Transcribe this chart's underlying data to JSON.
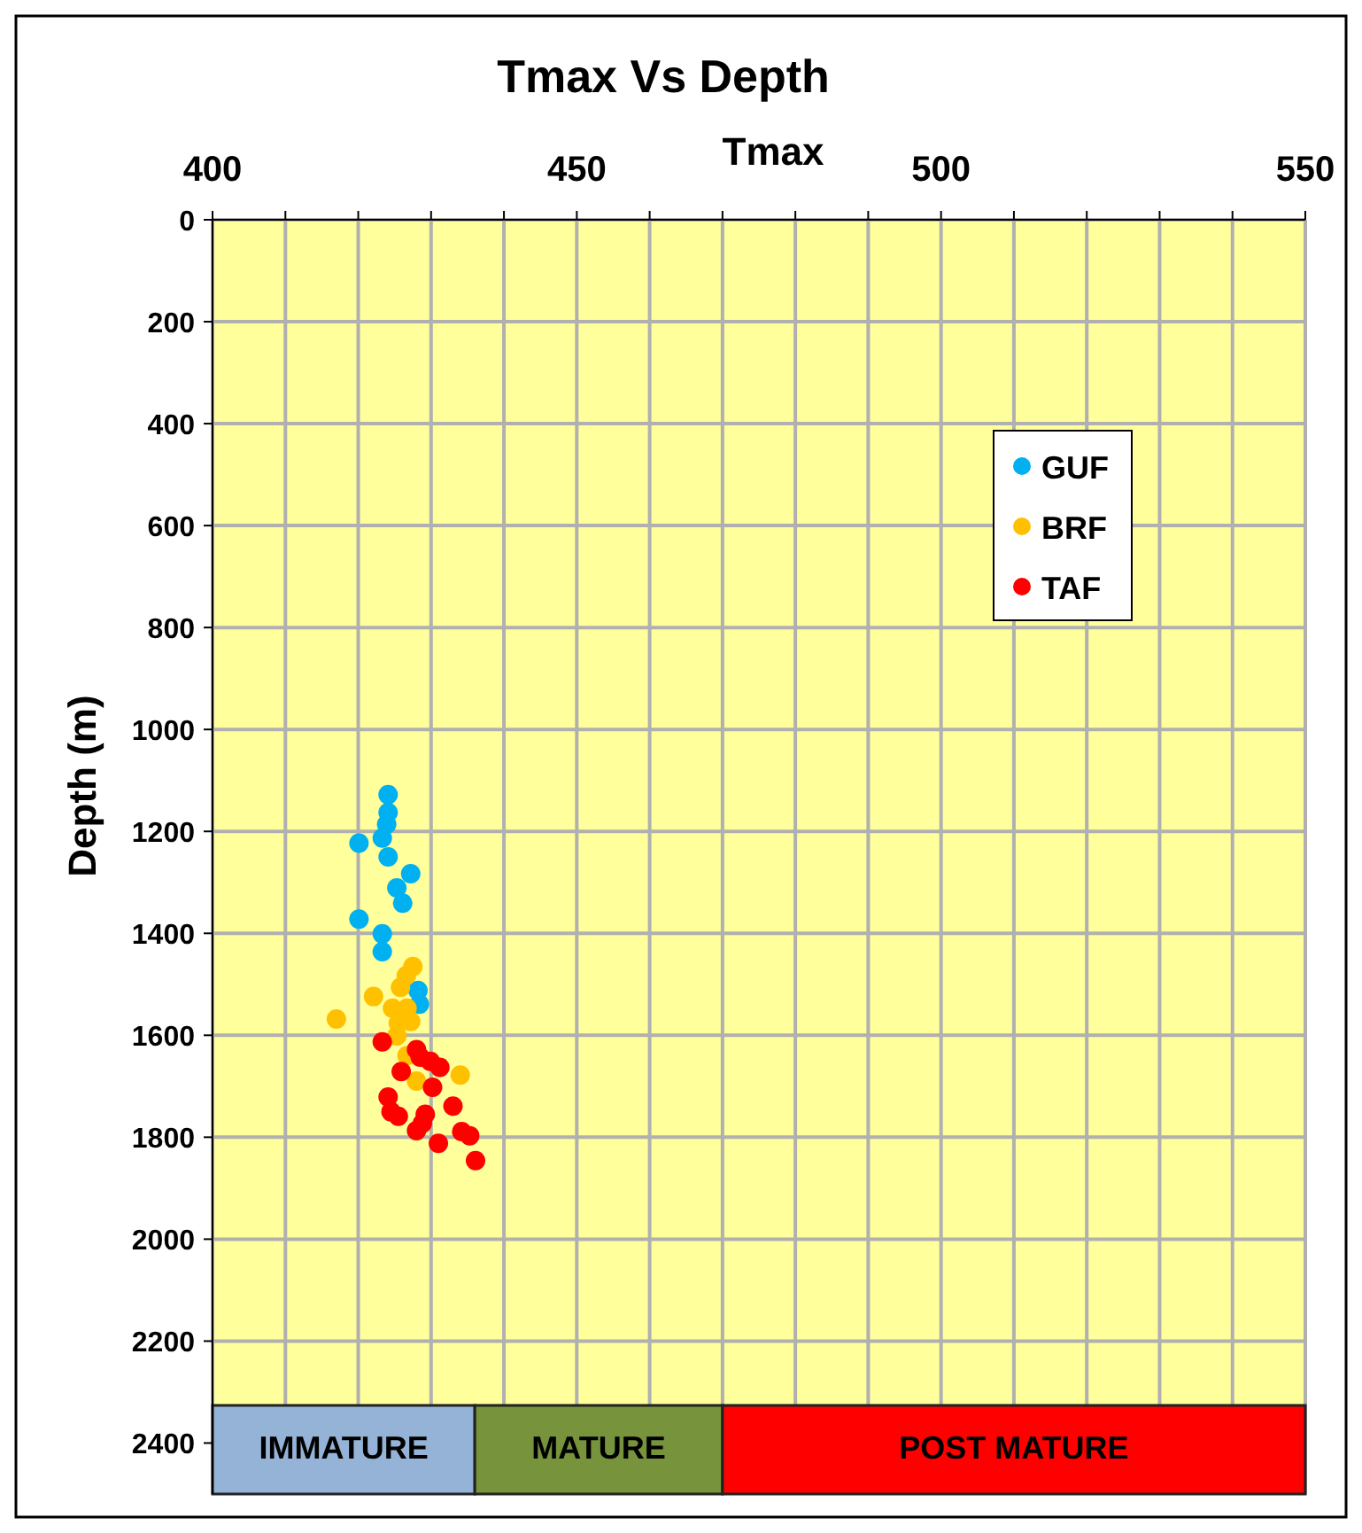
{
  "chart_data": {
    "type": "scatter",
    "title": "Tmax Vs Depth",
    "xlabel": "Tmax",
    "ylabel": "Depth (m)",
    "xlim": [
      400,
      550
    ],
    "ylim": [
      2500,
      0
    ],
    "xticks": [
      400,
      {
        "value": 410,
        "label": null
      },
      {
        "value": 420,
        "label": null
      },
      {
        "value": 430,
        "label": null
      },
      {
        "value": 440,
        "label": null
      },
      450,
      {
        "value": 460,
        "label": null
      },
      {
        "value": 470,
        "label": null
      },
      {
        "value": 480,
        "label": null
      },
      {
        "value": 490,
        "label": null
      },
      500,
      {
        "value": 510,
        "label": null
      },
      {
        "value": 520,
        "label": null
      },
      {
        "value": 530,
        "label": null
      },
      {
        "value": 540,
        "label": null
      },
      550
    ],
    "yticks": [
      0,
      200,
      400,
      600,
      800,
      1000,
      1200,
      1400,
      1600,
      1800,
      2000,
      2200,
      2400
    ],
    "grid": true,
    "legend": "right",
    "marker": "circle",
    "bands": [
      {
        "axis": "x",
        "from": 400,
        "to": 436,
        "label": "IMMATURE",
        "color": "#95b3d7"
      },
      {
        "axis": "x",
        "from": 436,
        "to": 470,
        "label": "MATURE",
        "color": "#77933c"
      },
      {
        "axis": "x",
        "from": 470,
        "to": 550,
        "label": "POST MATURE",
        "color": "#ff0000"
      }
    ],
    "series": [
      {
        "name": "GUF",
        "color": "#00b0f0",
        "x": [
          424.1,
          424.1,
          423.9,
          423.3,
          420.1,
          424.1,
          427.2,
          425.3,
          426.1,
          420.1,
          423.3,
          423.3,
          428.2,
          428.4
        ],
        "values": [
          1128,
          1163,
          1186,
          1213,
          1223,
          1250,
          1283,
          1311,
          1341,
          1372,
          1401,
          1436,
          1512,
          1539
        ]
      },
      {
        "name": "BRF",
        "color": "#ffc000",
        "x": [
          427.5,
          426.6,
          425.8,
          422.1,
          424.7,
          426.7,
          417.0,
          425.5,
          427.2,
          425.3,
          426.7,
          434.0,
          428.0
        ],
        "values": [
          1465,
          1483,
          1506,
          1524,
          1547,
          1547,
          1568,
          1576,
          1573,
          1601,
          1640,
          1678,
          1690
        ]
      },
      {
        "name": "TAF",
        "color": "#ff0000",
        "x": [
          423.3,
          428.0,
          428.5,
          429.9,
          431.2,
          425.9,
          430.2,
          433.0,
          424.1,
          424.5,
          425.5,
          429.2,
          428.8,
          428.0,
          434.2,
          435.3,
          431.0,
          436.1
        ],
        "values": [
          1613,
          1628,
          1643,
          1651,
          1663,
          1671,
          1702,
          1739,
          1721,
          1750,
          1759,
          1755,
          1773,
          1787,
          1789,
          1797,
          1812,
          1846
        ]
      }
    ]
  }
}
